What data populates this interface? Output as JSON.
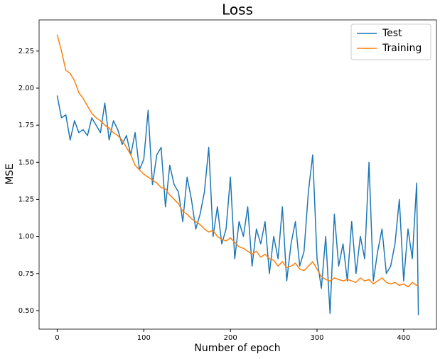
{
  "chart_data": {
    "type": "line",
    "title": "Loss",
    "x_label": "Number of epoch",
    "y_label": "MSE",
    "x": [
      0,
      5,
      10,
      15,
      20,
      25,
      30,
      35,
      40,
      45,
      50,
      55,
      60,
      65,
      70,
      75,
      80,
      85,
      90,
      95,
      100,
      105,
      110,
      115,
      120,
      125,
      130,
      135,
      140,
      145,
      150,
      155,
      160,
      165,
      170,
      175,
      180,
      185,
      190,
      195,
      200,
      205,
      210,
      215,
      220,
      225,
      230,
      235,
      240,
      245,
      250,
      255,
      260,
      265,
      270,
      275,
      280,
      285,
      290,
      295,
      300,
      305,
      310,
      315,
      320,
      325,
      330,
      335,
      340,
      345,
      350,
      355,
      360,
      365,
      370,
      375,
      380,
      385,
      390,
      395,
      400,
      405,
      410,
      415,
      417
    ],
    "series": [
      {
        "name": "Test",
        "color": "#1f77b4",
        "values": [
          1.95,
          1.8,
          1.82,
          1.65,
          1.78,
          1.7,
          1.72,
          1.68,
          1.8,
          1.75,
          1.7,
          1.9,
          1.65,
          1.78,
          1.72,
          1.62,
          1.68,
          1.55,
          1.7,
          1.45,
          1.52,
          1.85,
          1.35,
          1.55,
          1.6,
          1.2,
          1.48,
          1.35,
          1.3,
          1.1,
          1.4,
          1.25,
          1.05,
          1.15,
          1.3,
          1.6,
          1.0,
          1.2,
          0.95,
          1.05,
          1.4,
          0.85,
          1.1,
          1.0,
          1.2,
          0.8,
          1.05,
          0.95,
          1.1,
          0.75,
          1.0,
          0.85,
          1.2,
          0.7,
          0.95,
          1.1,
          0.8,
          0.9,
          1.3,
          1.55,
          0.85,
          0.65,
          1.0,
          0.48,
          1.15,
          0.8,
          0.95,
          0.7,
          1.1,
          0.75,
          1.0,
          0.85,
          1.5,
          0.7,
          0.9,
          1.05,
          0.75,
          0.8,
          0.95,
          1.25,
          0.7,
          1.05,
          0.85,
          1.36,
          0.47
        ]
      },
      {
        "name": "Training",
        "color": "#ff7f0e",
        "values": [
          2.36,
          2.25,
          2.12,
          2.1,
          2.05,
          1.97,
          1.93,
          1.88,
          1.83,
          1.8,
          1.78,
          1.75,
          1.73,
          1.7,
          1.68,
          1.65,
          1.6,
          1.55,
          1.48,
          1.45,
          1.42,
          1.4,
          1.38,
          1.36,
          1.33,
          1.32,
          1.28,
          1.25,
          1.22,
          1.17,
          1.15,
          1.12,
          1.1,
          1.08,
          1.05,
          1.03,
          1.04,
          1.0,
          0.98,
          0.97,
          0.99,
          0.96,
          0.93,
          0.92,
          0.9,
          0.88,
          0.9,
          0.86,
          0.88,
          0.85,
          0.84,
          0.8,
          0.83,
          0.79,
          0.8,
          0.82,
          0.78,
          0.77,
          0.8,
          0.83,
          0.78,
          0.73,
          0.71,
          0.7,
          0.72,
          0.71,
          0.7,
          0.71,
          0.7,
          0.69,
          0.72,
          0.7,
          0.71,
          0.68,
          0.7,
          0.72,
          0.69,
          0.68,
          0.69,
          0.67,
          0.68,
          0.66,
          0.69,
          0.67,
          0.68
        ]
      }
    ],
    "xlim": [
      -20.85,
      437.85
    ],
    "ylim": [
      0.375,
      2.46
    ],
    "xticks": [
      0,
      100,
      200,
      300,
      400
    ],
    "yticks": [
      {
        "value": 0.5,
        "label": "0.50"
      },
      0.75,
      {
        "value": 1.0,
        "label": "1.00"
      },
      1.25,
      {
        "value": 1.5,
        "label": "1.50"
      },
      1.75,
      {
        "value": 2.0,
        "label": "2.00"
      },
      2.25
    ],
    "legend": "upper right"
  }
}
